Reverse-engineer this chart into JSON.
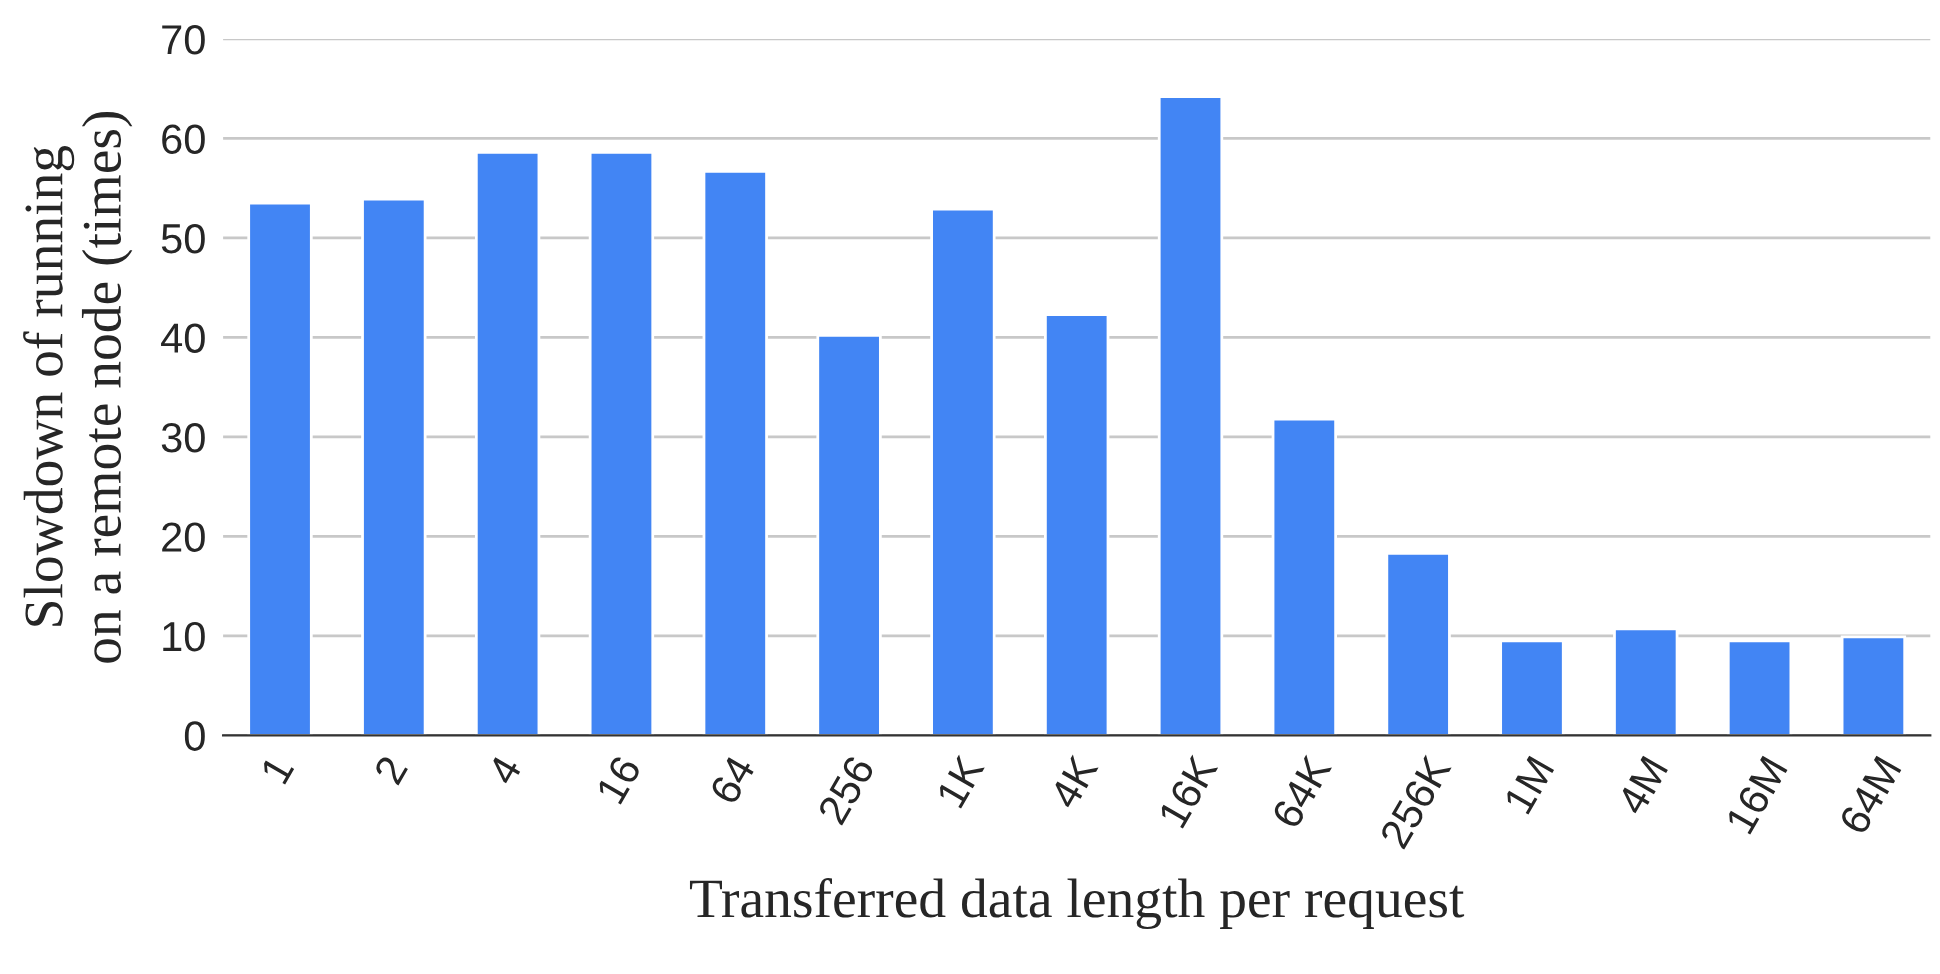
{
  "chart_data": {
    "type": "bar",
    "xlabel": "Transferred data length per request",
    "ylabel": "Slowdown of running\non a remote node (times)",
    "categories": [
      "1",
      "2",
      "4",
      "16",
      "64",
      "256",
      "1K",
      "4K",
      "16K",
      "64K",
      "256K",
      "1M",
      "4M",
      "16M",
      "64M"
    ],
    "series": [
      {
        "color": "#4285f4",
        "values": [
          53.5,
          53.9,
          58.6,
          58.6,
          56.7,
          40.2,
          52.9,
          42.3,
          64.2,
          31.8,
          18.3,
          9.5,
          10.7,
          9.5,
          9.9
        ]
      }
    ],
    "ylim": [
      0,
      70
    ],
    "yticks": [
      0,
      10,
      20,
      30,
      40,
      50,
      60,
      70
    ],
    "grid": "y",
    "legend": false
  }
}
